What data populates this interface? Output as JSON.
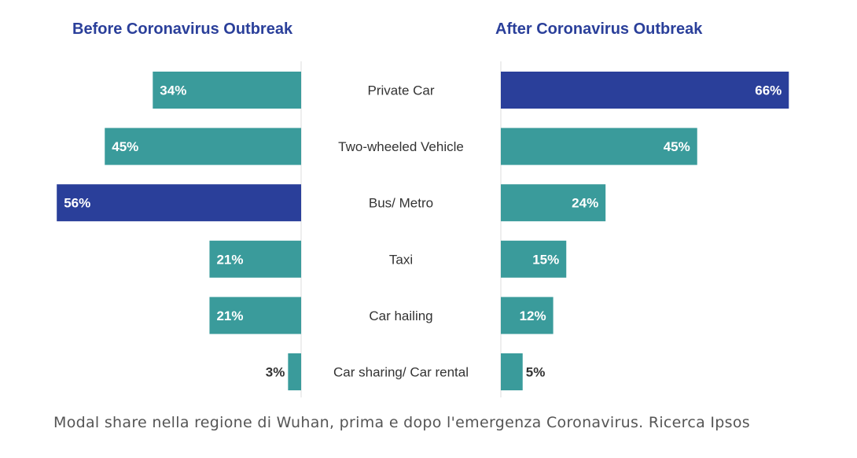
{
  "titles": {
    "before": "Before Coronavirus Outbreak",
    "after": "After Coronavirus Outbreak"
  },
  "caption": "Modal share nella regione di Wuhan, prima e dopo l'emergenza Coronavirus. Ricerca Ipsos",
  "colors": {
    "teal": "#3a9b9b",
    "highlight": "#2a3f9a",
    "axis": "#dddddd",
    "label_light": "#ffffff",
    "label_dark": "#333333"
  },
  "chart_data": {
    "type": "bar",
    "orientation": "horizontal",
    "layout": "butterfly",
    "categories": [
      "Private Car",
      "Two-wheeled Vehicle",
      "Bus/ Metro",
      "Taxi",
      "Car hailing",
      "Car sharing/ Car rental"
    ],
    "series": [
      {
        "name": "Before Coronavirus Outbreak",
        "values": [
          34,
          45,
          56,
          21,
          21,
          3
        ],
        "labels": [
          "34%",
          "45%",
          "56%",
          "21%",
          "21%",
          "3%"
        ],
        "highlight_index": 2
      },
      {
        "name": "After Coronavirus Outbreak",
        "values": [
          66,
          45,
          24,
          15,
          12,
          5
        ],
        "labels": [
          "66%",
          "45%",
          "24%",
          "15%",
          "12%",
          "5%"
        ],
        "highlight_index": 0
      }
    ],
    "unit": "%",
    "grid": false,
    "legend": "none"
  }
}
